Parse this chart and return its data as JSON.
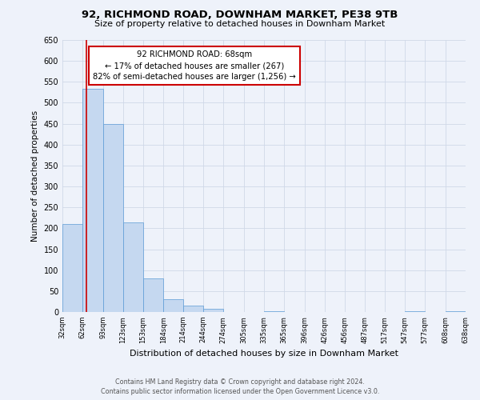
{
  "title": "92, RICHMOND ROAD, DOWNHAM MARKET, PE38 9TB",
  "subtitle": "Size of property relative to detached houses in Downham Market",
  "bar_values": [
    210,
    533,
    450,
    215,
    80,
    30,
    15,
    8,
    0,
    0,
    2,
    0,
    0,
    0,
    0,
    0,
    0,
    2,
    0,
    2
  ],
  "bin_labels": [
    "32sqm",
    "62sqm",
    "93sqm",
    "123sqm",
    "153sqm",
    "184sqm",
    "214sqm",
    "244sqm",
    "274sqm",
    "305sqm",
    "335sqm",
    "365sqm",
    "396sqm",
    "426sqm",
    "456sqm",
    "487sqm",
    "517sqm",
    "547sqm",
    "577sqm",
    "608sqm",
    "638sqm"
  ],
  "bar_color": "#c5d8f0",
  "bar_edge_color": "#5b9bd5",
  "vline_x": 68,
  "vline_color": "#cc0000",
  "annotation_title": "92 RICHMOND ROAD: 68sqm",
  "annotation_line1": "← 17% of detached houses are smaller (267)",
  "annotation_line2": "82% of semi-detached houses are larger (1,256) →",
  "annotation_box_color": "#ffffff",
  "annotation_box_edgecolor": "#cc0000",
  "ylabel": "Number of detached properties",
  "xlabel": "Distribution of detached houses by size in Downham Market",
  "ylim": [
    0,
    650
  ],
  "yticks": [
    0,
    50,
    100,
    150,
    200,
    250,
    300,
    350,
    400,
    450,
    500,
    550,
    600,
    650
  ],
  "footnote1": "Contains HM Land Registry data © Crown copyright and database right 2024.",
  "footnote2": "Contains public sector information licensed under the Open Government Licence v3.0.",
  "grid_color": "#d0d8e8",
  "background_color": "#eef2fa",
  "bin_edges": [
    32,
    62,
    93,
    123,
    153,
    184,
    214,
    244,
    274,
    305,
    335,
    365,
    396,
    426,
    456,
    487,
    517,
    547,
    577,
    608,
    638
  ]
}
